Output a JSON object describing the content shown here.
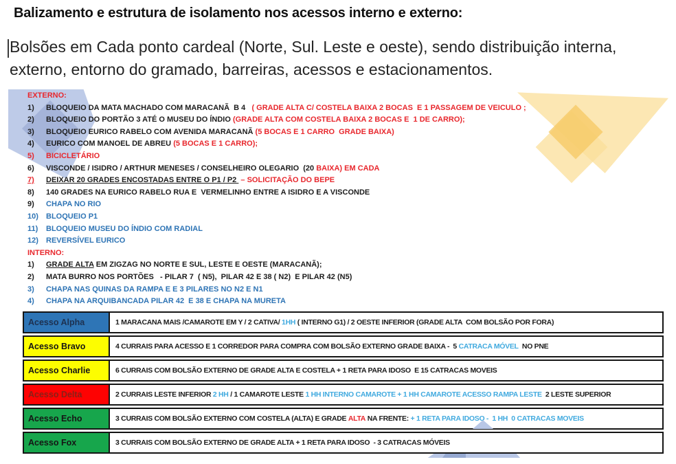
{
  "document": {
    "title": "Balizamento e estrutura de isolamento nos acessos interno e externo:",
    "intro": "Bolsões em Cada ponto cardeal (Norte, Sul. Leste e oeste), sendo distribuição interna, externo, entorno do gramado, barreiras, acessos e estacionamentos."
  },
  "colors": {
    "black": "#1c1c1c",
    "red": "#e8272d",
    "blue": "#2e74b5",
    "lightblue": "#41aadf",
    "label_navy": "#1d3150",
    "label_black": "#151515",
    "label_maroon": "#8a2018",
    "row_blue": "#2e75b6",
    "row_yellow": "#fdfd00",
    "row_red": "#fe0202",
    "row_green": "#17a64c",
    "deco_blue": "#b9c7e6",
    "deco_blue_dark": "#8fa3cc",
    "deco_yellow": "#fbdf9a",
    "deco_yellow_dark": "#f6cb66"
  },
  "list": {
    "externo_label": "EXTERNO:",
    "externo": [
      {
        "num": "1)",
        "num_color": "black",
        "segments": [
          {
            "t": "BLOQUEIO DA MATA MACHADO COM MARACANÃ  B 4   ",
            "c": "black"
          },
          {
            "t": "( GRADE ALTA C/ COSTELA BAIXA 2 BOCAS  E 1 PASSAGEM DE VEICULO ;",
            "c": "red"
          }
        ]
      },
      {
        "num": "2)",
        "num_color": "black",
        "segments": [
          {
            "t": "BLOQUEIO DO PORTÃO 3 ATÉ O MUSEU DO ÍNDIO ",
            "c": "black"
          },
          {
            "t": "(GRADE ALTA COM COSTELA BAIXA 2 BOCAS E  1 DE CARRO);",
            "c": "red"
          }
        ]
      },
      {
        "num": "3)",
        "num_color": "black",
        "segments": [
          {
            "t": "BLOQUEIO EURICO RABELO COM AVENIDA MARACANÃ ",
            "c": "black"
          },
          {
            "t": "(5 BOCAS E 1 CARRO  GRADE BAIXA)",
            "c": "red"
          }
        ]
      },
      {
        "num": "4)",
        "num_color": "black",
        "segments": [
          {
            "t": "EURICO COM MANOEL DE ABREU ",
            "c": "black"
          },
          {
            "t": "(5 BOCAS E 1 CARRO);",
            "c": "red"
          }
        ]
      },
      {
        "num": "5)",
        "num_color": "red",
        "segments": [
          {
            "t": "BICICLETÁRIO",
            "c": "red"
          }
        ]
      },
      {
        "num": "6)",
        "num_color": "black",
        "segments": [
          {
            "t": "VISCONDE / ISIDRO / ARTHUR MENESES / CONSELHEIRO OLEGARIO  (20 ",
            "c": "black"
          },
          {
            "t": "BAIXA) EM CADA",
            "c": "red"
          }
        ]
      },
      {
        "num": "7)",
        "num_color": "red",
        "num_underline": true,
        "segments": [
          {
            "t": "DEIXAR 20 GRADES ENCOSTADAS ENTRE O P1 / P2 ",
            "c": "black",
            "u": true
          },
          {
            "t": " – SOLICITAÇÃO DO BEPE",
            "c": "red"
          }
        ]
      },
      {
        "num": "8)",
        "num_color": "black",
        "segments": [
          {
            "t": "140 GRADES NA EURICO RABELO RUA E  VERMELINHO ENTRE A ISIDRO E A VISCONDE",
            "c": "black"
          }
        ]
      },
      {
        "num": "9)",
        "num_color": "black",
        "segments": [
          {
            "t": "CHAPA NO RIO",
            "c": "blue"
          }
        ]
      },
      {
        "num": "10)",
        "num_color": "blue",
        "segments": [
          {
            "t": "BLOQUEIO P1",
            "c": "blue"
          }
        ]
      },
      {
        "num": "11)",
        "num_color": "blue",
        "segments": [
          {
            "t": "BLOQUEIO MUSEU DO ÍNDIO COM RADIAL",
            "c": "blue"
          }
        ]
      },
      {
        "num": "12)",
        "num_color": "blue",
        "segments": [
          {
            "t": "REVERSÍVEL EURICO",
            "c": "blue"
          }
        ]
      }
    ],
    "interno_label": "INTERNO:",
    "interno": [
      {
        "num": "1)",
        "num_color": "black",
        "segments": [
          {
            "t": "GRADE ALTA",
            "c": "black",
            "u": true
          },
          {
            "t": " EM ZIGZAG NO NORTE E SUL, LESTE E OESTE (MARACANÃ);",
            "c": "black"
          }
        ]
      },
      {
        "num": "2)",
        "num_color": "black",
        "segments": [
          {
            "t": "MATA BURRO NOS PORTÕES   - PILAR 7  ( N5),  PILAR 42 E 38 ( N2)  E PILAR 42 (N5)",
            "c": "black"
          }
        ]
      },
      {
        "num": "3)",
        "num_color": "blue",
        "segments": [
          {
            "t": "CHAPA NAS QUINAS DA RAMPA E E 3 PILARES NO N2 E N1",
            "c": "blue"
          }
        ]
      },
      {
        "num": "4)",
        "num_color": "blue",
        "segments": [
          {
            "t": "CHAPA NA ARQUIBANCADA PILAR 42  E 38 E CHAPA NA MURETA",
            "c": "blue"
          }
        ]
      }
    ]
  },
  "table": {
    "rows": [
      {
        "label": "Acesso Alpha",
        "label_bg": "row_blue",
        "label_color": "label_navy",
        "segments": [
          {
            "t": "1 MARACANA MAIS /CAMAROTE EM Y / 2 CATIVA/ ",
            "c": "black"
          },
          {
            "t": "1HH",
            "c": "lightblue"
          },
          {
            "t": " ( INTERNO G1) / 2 OESTE INFERIOR (GRADE ALTA  COM BOLSÃO POR FORA)",
            "c": "black"
          }
        ]
      },
      {
        "label": "Acesso Bravo",
        "label_bg": "row_yellow",
        "label_color": "label_black",
        "segments": [
          {
            "t": "4 CURRAIS PARA ACESSO E 1 CORREDOR PARA COMPRA COM BOLSÃO EXTERNO GRADE BAIXA -  5 ",
            "c": "black"
          },
          {
            "t": "CATRACA MÓVEL",
            "c": "lightblue"
          },
          {
            "t": "  NO PNE",
            "c": "black"
          }
        ]
      },
      {
        "label": "Acesso Charlie",
        "label_bg": "row_yellow",
        "label_color": "label_black",
        "segments": [
          {
            "t": "6 CURRAIS COM BOLSÃO EXTERNO DE GRADE ALTA E COSTELA + 1 RETA PARA IDOSO  E 15 CATRACAS MOVEIS",
            "c": "black"
          }
        ]
      },
      {
        "label": "Acesso Delta",
        "label_bg": "row_red",
        "label_color": "label_maroon",
        "segments": [
          {
            "t": "2 CURRAIS LESTE INFERIOR ",
            "c": "black"
          },
          {
            "t": "2 HH ",
            "c": "lightblue"
          },
          {
            "t": "/ 1 CAMAROTE LESTE ",
            "c": "black"
          },
          {
            "t": "1 HH INTERNO CAMAROTE + 1 HH CAMAROTE ACESSO RAMPA LESTE",
            "c": "lightblue"
          },
          {
            "t": "  2 LESTE SUPERIOR",
            "c": "black"
          }
        ]
      },
      {
        "label": "Acesso Echo",
        "label_bg": "row_green",
        "label_color": "label_black",
        "segments": [
          {
            "t": "3 CURRAIS COM BOLSÃO EXTERNO COM COSTELA (ALTA) E GRADE ",
            "c": "black"
          },
          {
            "t": "ALTA",
            "c": "red"
          },
          {
            "t": " NA FRENTE: ",
            "c": "black"
          },
          {
            "t": "+ 1 RETA PARA IDOSO -  1 HH  0 CATRACAS MOVEIS",
            "c": "lightblue"
          }
        ]
      },
      {
        "label": "Acesso Fox",
        "label_bg": "row_green",
        "label_color": "label_black",
        "segments": [
          {
            "t": "3 CURRAIS COM BOLSÃO EXTERNO DE GRADE ALTA + 1 RETA PARA IDOSO  - 3 CATRACAS MÓVEIS",
            "c": "black"
          }
        ]
      }
    ]
  }
}
